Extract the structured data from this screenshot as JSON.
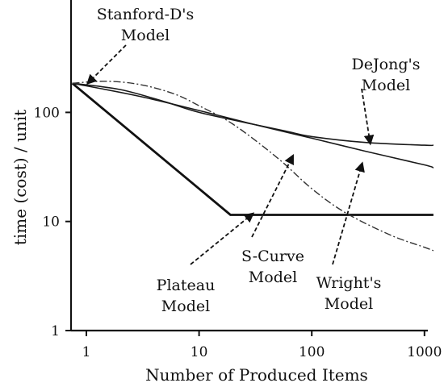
{
  "chart_data": {
    "type": "line",
    "xlabel": "Number of Produced Items",
    "ylabel": "time (cost) / unit",
    "xscale": "log",
    "yscale": "log",
    "xlim": [
      0.75,
      1400
    ],
    "ylim": [
      1,
      680
    ],
    "xticks": [
      1,
      10,
      100,
      1000
    ],
    "xtick_labels": [
      "1",
      "10",
      "100",
      "1000"
    ],
    "yticks": [
      1,
      10,
      100
    ],
    "ytick_labels": [
      "1",
      "10",
      "100"
    ],
    "grid": false,
    "legend": "none",
    "series": [
      {
        "style": "solid-thin",
        "points": [
          [
            0.75,
            185
          ],
          [
            1,
            175
          ],
          [
            3,
            140
          ],
          [
            10,
            104
          ],
          [
            30,
            78
          ],
          [
            100,
            58
          ],
          [
            300,
            44
          ],
          [
            1000,
            33
          ],
          [
            1200,
            31
          ]
        ]
      },
      {
        "style": "solid-thick",
        "points": [
          [
            0.75,
            185
          ],
          [
            19,
            11.5
          ],
          [
            1200,
            11.5
          ]
        ]
      },
      {
        "style": "solid-thin",
        "points": [
          [
            0.75,
            185
          ],
          [
            2,
            162
          ],
          [
            5,
            125
          ],
          [
            10,
            100
          ],
          [
            30,
            78
          ],
          [
            60,
            67
          ],
          [
            100,
            60
          ],
          [
            300,
            53
          ],
          [
            1000,
            50
          ],
          [
            1200,
            50
          ]
        ]
      },
      {
        "style": "dash-dot",
        "points": [
          [
            0.75,
            185
          ],
          [
            1.5,
            193
          ],
          [
            3,
            180
          ],
          [
            6,
            148
          ],
          [
            10,
            115
          ],
          [
            20,
            78
          ],
          [
            50,
            38
          ],
          [
            100,
            20
          ],
          [
            200,
            12
          ],
          [
            500,
            7.5
          ],
          [
            1000,
            5.8
          ],
          [
            1200,
            5.4
          ]
        ]
      }
    ],
    "annotations": [
      {
        "lines": [
          "Stanford-D's",
          "Model"
        ],
        "arrow_to": [
          1.03,
          185
        ]
      },
      {
        "lines": [
          "DeJong's",
          "Model"
        ],
        "arrow_to": [
          330,
          52
        ]
      },
      {
        "lines": [
          "S-Curve",
          "Model"
        ],
        "arrow_to": [
          68,
          40
        ]
      },
      {
        "lines": [
          "Wright's",
          "Model"
        ],
        "arrow_to": [
          280,
          34
        ]
      },
      {
        "lines": [
          "Plateau",
          "Model"
        ],
        "arrow_to": [
          30,
          11.8
        ]
      }
    ]
  }
}
